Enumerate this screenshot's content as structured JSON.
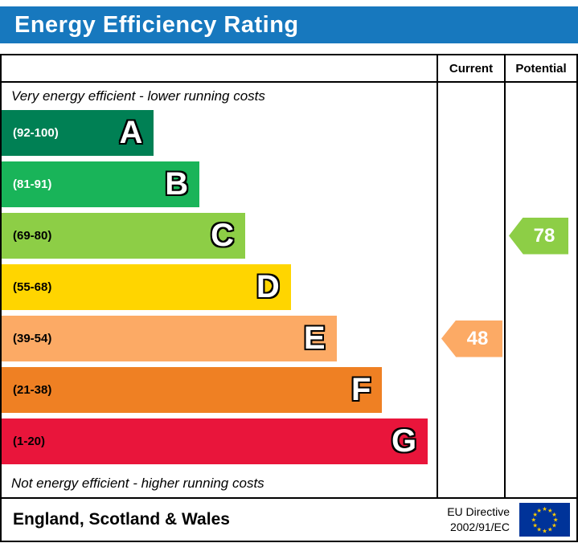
{
  "title": "Energy Efficiency Rating",
  "colors": {
    "title_bg": "#1778be",
    "flag_bg": "#003399",
    "flag_star": "#ffcc00"
  },
  "columns": {
    "current": "Current",
    "potential": "Potential"
  },
  "captions": {
    "top": "Very energy efficient - lower running costs",
    "bottom": "Not energy efficient - higher running costs"
  },
  "bands": [
    {
      "letter": "A",
      "range": "(92-100)",
      "color": "#008054",
      "text_color": "#ffffff"
    },
    {
      "letter": "B",
      "range": "(81-91)",
      "color": "#19b459",
      "text_color": "#ffffff"
    },
    {
      "letter": "C",
      "range": "(69-80)",
      "color": "#8dce46",
      "text_color": "#000000"
    },
    {
      "letter": "D",
      "range": "(55-68)",
      "color": "#ffd500",
      "text_color": "#000000"
    },
    {
      "letter": "E",
      "range": "(39-54)",
      "color": "#fcaa65",
      "text_color": "#000000"
    },
    {
      "letter": "F",
      "range": "(21-38)",
      "color": "#ef8023",
      "text_color": "#000000"
    },
    {
      "letter": "G",
      "range": "(1-20)",
      "color": "#e9153b",
      "text_color": "#000000"
    }
  ],
  "pointers": {
    "current": {
      "value": "48",
      "band": "E",
      "color": "#fcaa65"
    },
    "potential": {
      "value": "78",
      "band": "C",
      "color": "#8dce46"
    }
  },
  "footer": {
    "region": "England, Scotland & Wales",
    "directive_line1": "EU Directive",
    "directive_line2": "2002/91/EC"
  },
  "chart_data": {
    "type": "bar",
    "title": "Energy Efficiency Rating",
    "categories": [
      "A (92-100)",
      "B (81-91)",
      "C (69-80)",
      "D (55-68)",
      "E (39-54)",
      "F (21-38)",
      "G (1-20)"
    ],
    "scale_range": [
      1,
      100
    ],
    "series": [
      {
        "name": "Current",
        "value": 48,
        "band": "E"
      },
      {
        "name": "Potential",
        "value": 78,
        "band": "C"
      }
    ],
    "notes": [
      "Very energy efficient - lower running costs",
      "Not energy efficient - higher running costs"
    ],
    "region": "England, Scotland & Wales",
    "directive": "EU Directive 2002/91/EC"
  }
}
